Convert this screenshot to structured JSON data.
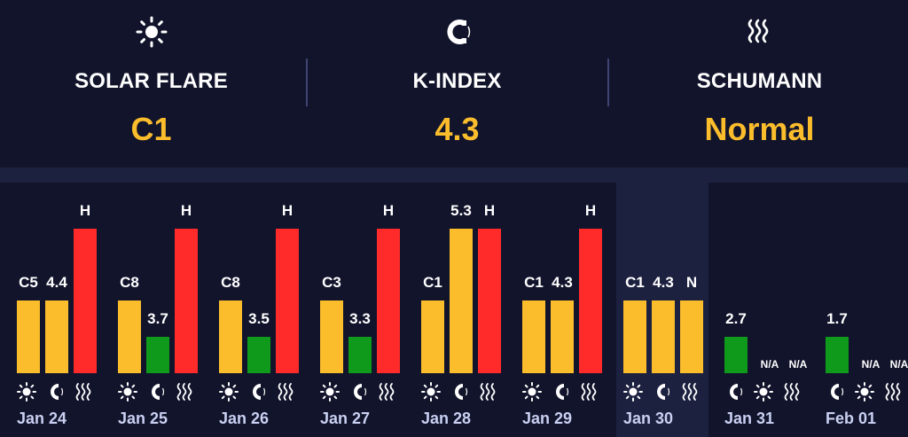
{
  "header": {
    "stats": [
      {
        "label": "SOLAR FLARE",
        "value": "C1",
        "icon": "sun-icon"
      },
      {
        "label": "K-INDEX",
        "value": "4.3",
        "icon": "magnet-icon"
      },
      {
        "label": "SCHUMANN",
        "value": "Normal",
        "icon": "waves-icon"
      }
    ]
  },
  "colors": {
    "background": "#11142b",
    "accent": "#fbbd2c",
    "flare": "#fbbd2c",
    "kindex_low": "#0f9a1c",
    "kindex_high": "#fbbd2c",
    "schumann_high": "#ff2b2b",
    "schumann_normal": "#fbbd2c",
    "date_text": "#c9d0f2"
  },
  "chart_data": {
    "type": "bar",
    "series": [
      {
        "name": "Solar Flare",
        "labels": [
          "C5",
          "C8",
          "C8",
          "C3",
          "C1",
          "C1",
          "C1",
          "N/A",
          "N/A"
        ]
      },
      {
        "name": "K-Index",
        "labels": [
          "4.4",
          "3.7",
          "3.5",
          "3.3",
          "5.3",
          "4.3",
          "4.3",
          "2.7",
          "1.7"
        ]
      },
      {
        "name": "Schumann",
        "labels": [
          "H",
          "H",
          "H",
          "H",
          "H",
          "H",
          "N",
          "N/A",
          "N/A"
        ]
      }
    ],
    "days": [
      {
        "date": "Jan 24",
        "flare": "C5",
        "kindex": "4.4",
        "schumann": "H",
        "kindex_level": "high"
      },
      {
        "date": "Jan 25",
        "flare": "C8",
        "kindex": "3.7",
        "schumann": "H",
        "kindex_level": "low"
      },
      {
        "date": "Jan 26",
        "flare": "C8",
        "kindex": "3.5",
        "schumann": "H",
        "kindex_level": "low"
      },
      {
        "date": "Jan 27",
        "flare": "C3",
        "kindex": "3.3",
        "schumann": "H",
        "kindex_level": "low"
      },
      {
        "date": "Jan 28",
        "flare": "C1",
        "kindex": "5.3",
        "schumann": "H",
        "kindex_level": "storm"
      },
      {
        "date": "Jan 29",
        "flare": "C1",
        "kindex": "4.3",
        "schumann": "H",
        "kindex_level": "high"
      },
      {
        "date": "Jan 30",
        "flare": "C1",
        "kindex": "4.3",
        "schumann": "N",
        "kindex_level": "high",
        "current": true
      },
      {
        "date": "Jan 31",
        "flare": "N/A",
        "kindex": "2.7",
        "schumann": "N/A",
        "kindex_level": "low"
      },
      {
        "date": "Feb 01",
        "flare": "N/A",
        "kindex": "1.7",
        "schumann": "N/A",
        "kindex_level": "low"
      }
    ]
  }
}
